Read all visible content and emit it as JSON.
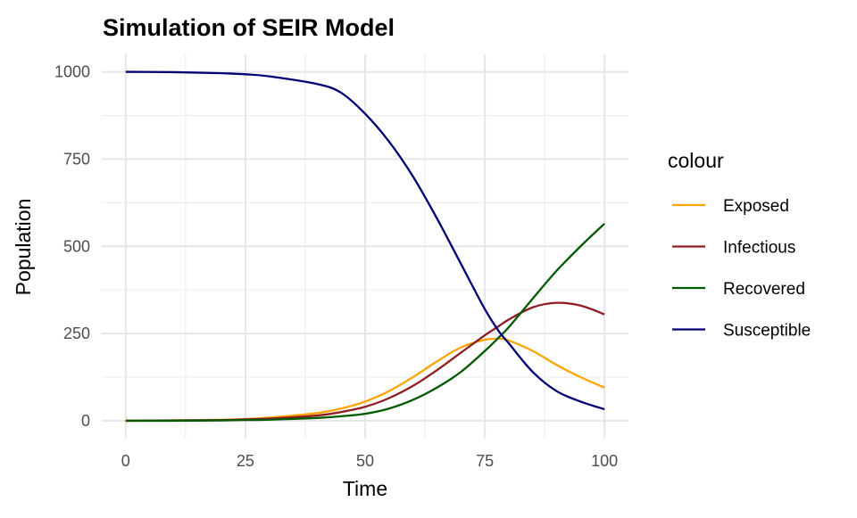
{
  "chart_data": {
    "type": "line",
    "title": "Simulation of SEIR Model",
    "xlabel": "Time",
    "ylabel": "Population",
    "xlim": [
      -5,
      105
    ],
    "ylim": [
      -50,
      1050
    ],
    "xticks": [
      0,
      25,
      50,
      75,
      100
    ],
    "yticks": [
      0,
      250,
      500,
      750,
      1000
    ],
    "grid": true,
    "legend": {
      "title": "colour",
      "placement": "right"
    },
    "x": [
      0,
      10,
      20,
      25,
      30,
      40,
      45,
      50,
      55,
      60,
      65,
      70,
      75,
      78,
      80,
      85,
      90,
      95,
      100
    ],
    "series": [
      {
        "name": "Exposed",
        "color": "#FFA500",
        "values": [
          0,
          1,
          3,
          5,
          9,
          22,
          35,
          55,
          85,
          125,
          170,
          210,
          232,
          235,
          230,
          200,
          160,
          125,
          95
        ]
      },
      {
        "name": "Infectious",
        "color": "#8F1D24",
        "values": [
          0,
          1,
          2,
          4,
          6,
          15,
          25,
          40,
          65,
          100,
          145,
          195,
          245,
          272,
          290,
          325,
          338,
          330,
          305
        ]
      },
      {
        "name": "Recovered",
        "color": "#005A00",
        "values": [
          0,
          0,
          1,
          2,
          3,
          8,
          13,
          20,
          35,
          60,
          95,
          140,
          200,
          240,
          268,
          350,
          430,
          500,
          565
        ]
      },
      {
        "name": "Susceptible",
        "color": "#000075",
        "values": [
          1000,
          999,
          996,
          993,
          987,
          965,
          940,
          880,
          800,
          700,
          580,
          450,
          320,
          255,
          222,
          140,
          85,
          55,
          33
        ]
      }
    ]
  }
}
